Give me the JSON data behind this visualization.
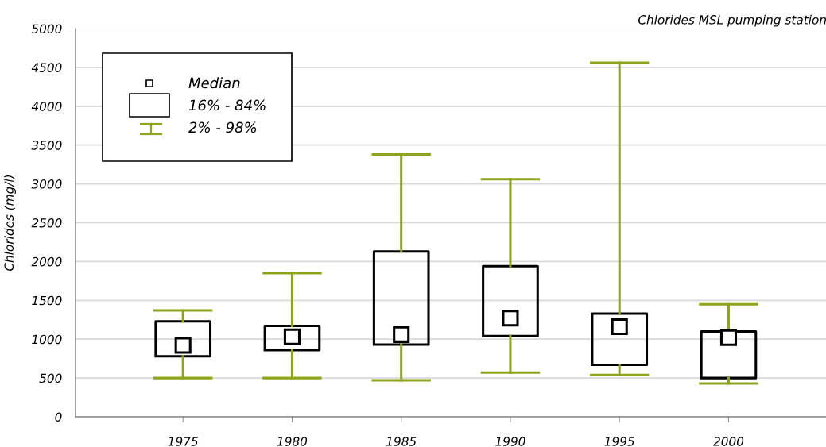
{
  "chart_data": {
    "type": "box",
    "title": "Chlorides MSL pumping station",
    "ylabel": "Chlorides (mg/l)",
    "categories": [
      "1975",
      "1980",
      "1985",
      "1990",
      "1995",
      "2000"
    ],
    "boxes": [
      {
        "low": 500,
        "q1": 780,
        "median": 920,
        "q3": 1230,
        "high": 1370
      },
      {
        "low": 500,
        "q1": 860,
        "median": 1030,
        "q3": 1170,
        "high": 1850
      },
      {
        "low": 470,
        "q1": 930,
        "median": 1060,
        "q3": 2130,
        "high": 3380
      },
      {
        "low": 570,
        "q1": 1040,
        "median": 1270,
        "q3": 1940,
        "high": 3060
      },
      {
        "low": 540,
        "q1": 670,
        "median": 1160,
        "q3": 1330,
        "high": 4560
      },
      {
        "low": 430,
        "q1": 500,
        "median": 1020,
        "q3": 1100,
        "high": 1450
      }
    ],
    "color": "#000000",
    "annotations": [
      "Median",
      "16% - 84%",
      "2% - 98%"
    ],
    "marker": "square",
    "grid": "y",
    "ylim": [
      0,
      5000
    ],
    "yticks": [
      0,
      500,
      1000,
      1500,
      2000,
      2500,
      3000,
      3500,
      4000,
      4500,
      5000
    ]
  }
}
